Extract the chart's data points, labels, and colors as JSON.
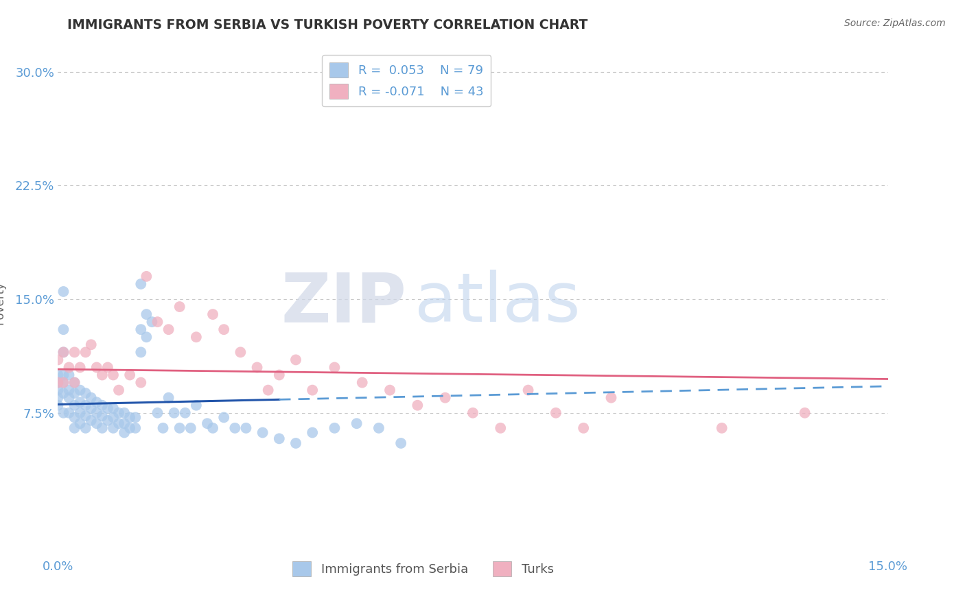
{
  "title": "IMMIGRANTS FROM SERBIA VS TURKISH POVERTY CORRELATION CHART",
  "source": "Source: ZipAtlas.com",
  "xlabel": "",
  "ylabel": "Poverty",
  "xlim": [
    0.0,
    0.15
  ],
  "ylim": [
    -0.02,
    0.315
  ],
  "xticks": [
    0.0,
    0.15
  ],
  "xticklabels": [
    "0.0%",
    "15.0%"
  ],
  "yticks": [
    0.075,
    0.15,
    0.225,
    0.3
  ],
  "yticklabels": [
    "7.5%",
    "15.0%",
    "22.5%",
    "30.0%"
  ],
  "grid_color": "#c8c8c8",
  "bg_color": "#ffffff",
  "serbia_color": "#a8c8ea",
  "turks_color": "#f0b0c0",
  "serbia_line_color": "#2255aa",
  "turks_line_color": "#e06080",
  "label_color": "#5b9bd5",
  "serbia_R": 0.053,
  "serbia_N": 79,
  "turks_R": -0.071,
  "turks_N": 43,
  "serbia_points_x": [
    0.0,
    0.0,
    0.0,
    0.0,
    0.0,
    0.001,
    0.001,
    0.001,
    0.001,
    0.001,
    0.001,
    0.001,
    0.002,
    0.002,
    0.002,
    0.002,
    0.003,
    0.003,
    0.003,
    0.003,
    0.003,
    0.004,
    0.004,
    0.004,
    0.004,
    0.005,
    0.005,
    0.005,
    0.005,
    0.006,
    0.006,
    0.006,
    0.007,
    0.007,
    0.007,
    0.008,
    0.008,
    0.008,
    0.009,
    0.009,
    0.01,
    0.01,
    0.01,
    0.011,
    0.011,
    0.012,
    0.012,
    0.012,
    0.013,
    0.013,
    0.014,
    0.014,
    0.015,
    0.015,
    0.015,
    0.016,
    0.016,
    0.017,
    0.018,
    0.019,
    0.02,
    0.021,
    0.022,
    0.023,
    0.024,
    0.025,
    0.027,
    0.028,
    0.03,
    0.032,
    0.034,
    0.037,
    0.04,
    0.043,
    0.046,
    0.05,
    0.054,
    0.058,
    0.062
  ],
  "serbia_points_y": [
    0.1,
    0.095,
    0.09,
    0.085,
    0.08,
    0.155,
    0.13,
    0.115,
    0.1,
    0.095,
    0.088,
    0.075,
    0.1,
    0.09,
    0.085,
    0.075,
    0.095,
    0.088,
    0.08,
    0.072,
    0.065,
    0.09,
    0.082,
    0.075,
    0.068,
    0.088,
    0.08,
    0.073,
    0.065,
    0.085,
    0.078,
    0.07,
    0.082,
    0.075,
    0.068,
    0.08,
    0.073,
    0.065,
    0.078,
    0.07,
    0.078,
    0.072,
    0.065,
    0.075,
    0.068,
    0.075,
    0.068,
    0.062,
    0.072,
    0.065,
    0.072,
    0.065,
    0.16,
    0.13,
    0.115,
    0.14,
    0.125,
    0.135,
    0.075,
    0.065,
    0.085,
    0.075,
    0.065,
    0.075,
    0.065,
    0.08,
    0.068,
    0.065,
    0.072,
    0.065,
    0.065,
    0.062,
    0.058,
    0.055,
    0.062,
    0.065,
    0.068,
    0.065,
    0.055
  ],
  "turks_points_x": [
    0.0,
    0.0,
    0.001,
    0.001,
    0.002,
    0.003,
    0.003,
    0.004,
    0.005,
    0.006,
    0.007,
    0.008,
    0.009,
    0.01,
    0.011,
    0.013,
    0.015,
    0.016,
    0.018,
    0.02,
    0.022,
    0.025,
    0.028,
    0.03,
    0.033,
    0.036,
    0.038,
    0.04,
    0.043,
    0.046,
    0.05,
    0.055,
    0.06,
    0.065,
    0.07,
    0.075,
    0.08,
    0.085,
    0.09,
    0.095,
    0.1,
    0.12,
    0.135
  ],
  "turks_points_y": [
    0.11,
    0.095,
    0.115,
    0.095,
    0.105,
    0.115,
    0.095,
    0.105,
    0.115,
    0.12,
    0.105,
    0.1,
    0.105,
    0.1,
    0.09,
    0.1,
    0.095,
    0.165,
    0.135,
    0.13,
    0.145,
    0.125,
    0.14,
    0.13,
    0.115,
    0.105,
    0.09,
    0.1,
    0.11,
    0.09,
    0.105,
    0.095,
    0.09,
    0.08,
    0.085,
    0.075,
    0.065,
    0.09,
    0.075,
    0.065,
    0.085,
    0.065,
    0.075
  ]
}
